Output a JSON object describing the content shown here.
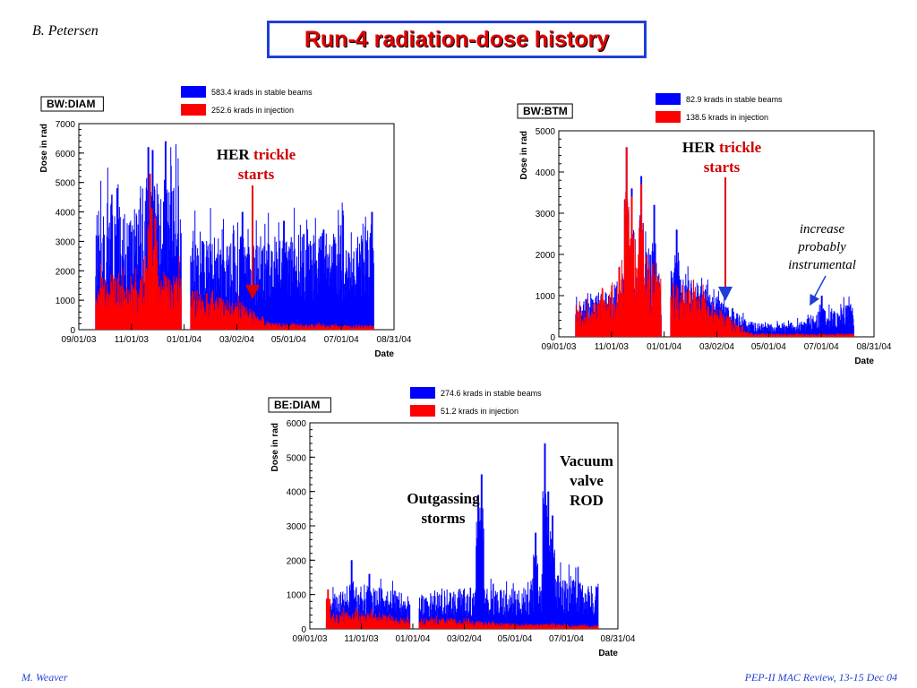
{
  "slide": {
    "author": "B. Petersen",
    "title": "Run-4 radiation-dose history",
    "footer_left": "M. Weaver",
    "footer_right": "PEP-II  MAC Review, 13-15 Dec 04"
  },
  "annotations": {
    "her_word": "HER",
    "trickle_word": "trickle",
    "starts_word": "starts",
    "increase_line1": "increase",
    "increase_line2": "probably",
    "increase_line3": "instrumental",
    "outgassing_line1": "Outgassing",
    "outgassing_line2": "storms",
    "vacuum_line1": "Vacuum",
    "vacuum_line2": "valve",
    "vacuum_line3": "ROD"
  },
  "colors": {
    "stable": "#0000ff",
    "injection": "#ff0000",
    "title": "#e00000",
    "title_border": "#1f3fd6",
    "footer": "#1f3fd6",
    "arrow_red": "#e00000",
    "arrow_blue": "#1f3fd6"
  },
  "chart_data": [
    {
      "type": "bar",
      "label": "BW:DIAM",
      "ylabel": "Dose in rad",
      "xlabel": "Date",
      "ylim": [
        0,
        7000
      ],
      "yticks": [
        "0",
        "1000",
        "2000",
        "3000",
        "4000",
        "5000",
        "6000",
        "7000"
      ],
      "xticks": [
        "09/01/03",
        "11/01/03",
        "01/01/04",
        "03/02/04",
        "05/01/04",
        "07/01/04",
        "08/31/04"
      ],
      "x_start": "09/01/03",
      "x_end": "08/31/04",
      "legend": [
        {
          "name": "583.4 krads in stable beams",
          "color": "#0000ff"
        },
        {
          "name": "252.6 krads in injection",
          "color": "#ff0000"
        }
      ],
      "series": [
        {
          "name": "stable beams",
          "segments": [
            {
              "from": "09/20/03",
              "to": "12/28/03",
              "base": [
                3200,
                3700,
                3000,
                4200,
                3600,
                4400
              ],
              "peaks": [
                [
                  "11/20/03",
                  6200
                ],
                [
                  "12/10/03",
                  6400
                ],
                [
                  "11/25/03",
                  6100
                ],
                [
                  "10/15/03",
                  4800
                ]
              ]
            },
            {
              "from": "01/08/04",
              "to": "08/07/04",
              "base": [
                2700,
                2600,
                2200,
                2500,
                2600,
                2700,
                2900,
                3200
              ],
              "peaks": [
                [
                  "03/08/04",
                  4000
                ],
                [
                  "04/25/04",
                  3700
                ],
                [
                  "06/10/04",
                  3400
                ],
                [
                  "08/05/04",
                  4000
                ]
              ]
            }
          ]
        },
        {
          "name": "injection",
          "segments": [
            {
              "from": "09/20/03",
              "to": "12/28/03",
              "base": [
                1400,
                1500,
                1300,
                1700,
                1400,
                1600
              ],
              "peaks": [
                [
                  "11/22/03",
                  5300
                ],
                [
                  "11/28/03",
                  3800
                ]
              ]
            },
            {
              "from": "01/08/04",
              "to": "08/07/04",
              "base": [
                1100,
                900,
                700,
                200,
                150,
                150,
                120,
                120
              ],
              "peaks": []
            }
          ]
        }
      ]
    },
    {
      "type": "bar",
      "label": "BW:BTM",
      "ylabel": "Dose in rad",
      "xlabel": "Date",
      "ylim": [
        0,
        5000
      ],
      "yticks": [
        "0",
        "1000",
        "2000",
        "3000",
        "4000",
        "5000"
      ],
      "xticks": [
        "09/01/03",
        "11/01/03",
        "01/01/04",
        "03/02/04",
        "05/01/04",
        "07/01/04",
        "08/31/04"
      ],
      "x_start": "09/01/03",
      "x_end": "08/31/04",
      "legend": [
        {
          "name": "82.9 krads in stable beams",
          "color": "#0000ff"
        },
        {
          "name": "138.5 krads in injection",
          "color": "#ff0000"
        }
      ],
      "series": [
        {
          "name": "stable beams",
          "segments": [
            {
              "from": "09/20/03",
              "to": "12/28/03",
              "base": [
                600,
                800,
                900,
                1500,
                1800,
                1300
              ],
              "peaks": [
                [
                  "11/18/03",
                  4600
                ],
                [
                  "11/24/03",
                  3600
                ],
                [
                  "12/05/03",
                  3900
                ],
                [
                  "12/20/03",
                  3200
                ]
              ]
            },
            {
              "from": "01/08/04",
              "to": "08/07/04",
              "base": [
                1300,
                1100,
                700,
                300,
                250,
                300,
                550,
                650
              ],
              "peaks": [
                [
                  "01/15/04",
                  2600
                ],
                [
                  "07/01/04",
                  1000
                ]
              ]
            }
          ]
        },
        {
          "name": "injection",
          "segments": [
            {
              "from": "09/20/03",
              "to": "12/28/03",
              "base": [
                500,
                700,
                800,
                1400,
                1700,
                1200
              ],
              "peaks": [
                [
                  "11/18/03",
                  4600
                ],
                [
                  "11/24/03",
                  3400
                ],
                [
                  "12/05/03",
                  3700
                ]
              ]
            },
            {
              "from": "01/08/04",
              "to": "08/07/04",
              "base": [
                1100,
                900,
                500,
                80,
                60,
                60,
                60,
                60
              ],
              "peaks": []
            }
          ]
        }
      ]
    },
    {
      "type": "bar",
      "label": "BE:DIAM",
      "ylabel": "Dose in rad",
      "xlabel": "Date",
      "ylim": [
        0,
        6000
      ],
      "yticks": [
        "0",
        "1000",
        "2000",
        "3000",
        "4000",
        "5000",
        "6000"
      ],
      "xticks": [
        "09/01/03",
        "11/01/03",
        "01/01/04",
        "03/02/04",
        "05/01/04",
        "07/01/04",
        "08/31/04"
      ],
      "x_start": "09/01/03",
      "x_end": "08/31/04",
      "legend": [
        {
          "name": "274.6 krads in stable beams",
          "color": "#0000ff"
        },
        {
          "name": "51.2 krads in injection",
          "color": "#ff0000"
        }
      ],
      "series": [
        {
          "name": "stable beams",
          "segments": [
            {
              "from": "09/20/03",
              "to": "12/28/03",
              "base": [
                700,
                900,
                1000,
                1000,
                900,
                800
              ],
              "peaks": [
                [
                  "10/20/03",
                  2000
                ],
                [
                  "11/10/03",
                  1600
                ]
              ]
            },
            {
              "from": "01/08/04",
              "to": "08/07/04",
              "base": [
                800,
                900,
                1000,
                900,
                1000,
                1400,
                1200,
                1000
              ],
              "peaks": [
                [
                  "03/22/04",
                  4500
                ],
                [
                  "03/18/04",
                  3900
                ],
                [
                  "05/25/04",
                  2800
                ],
                [
                  "06/05/04",
                  5400
                ],
                [
                  "06/09/04",
                  4000
                ],
                [
                  "06/14/04",
                  3300
                ]
              ]
            }
          ]
        },
        {
          "name": "injection",
          "segments": [
            {
              "from": "09/20/03",
              "to": "12/28/03",
              "base": [
                300,
                400,
                400,
                350,
                300,
                250
              ],
              "peaks": [
                [
                  "09/22/03",
                  1150
                ]
              ]
            },
            {
              "from": "01/08/04",
              "to": "08/07/04",
              "base": [
                200,
                250,
                200,
                150,
                120,
                120,
                100,
                80
              ],
              "peaks": []
            }
          ]
        }
      ]
    }
  ]
}
